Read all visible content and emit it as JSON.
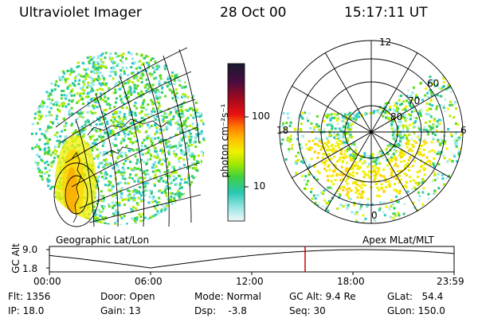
{
  "header": {
    "instrument": "Ultraviolet Imager",
    "date": "28 Oct 00",
    "time": "15:17:11 UT"
  },
  "colorbar": {
    "unit": "photon cm⁻²s⁻¹",
    "ticks": [
      "100",
      "10"
    ],
    "colors": [
      "#202040",
      "#3a1040",
      "#6a0a38",
      "#a00a1e",
      "#dc1414",
      "#ff5a00",
      "#ff9600",
      "#ffc800",
      "#f0f000",
      "#b4ec00",
      "#5adc1e",
      "#28c878",
      "#28c8c8",
      "#8ce6e6",
      "#c8f0f0",
      "#ecf8f8"
    ]
  },
  "left_panel": {
    "label": "Geographic Lat/Lon"
  },
  "right_panel": {
    "label": "Apex MLat/MLT",
    "mlt_labels": {
      "top": "12",
      "left": "18",
      "right": "6",
      "bottom": "0"
    },
    "lat_labels": [
      "60",
      "70",
      "80"
    ]
  },
  "altitude_plot": {
    "axis_label": "GC Alt",
    "y_ticks": [
      "9.0",
      "1.8"
    ],
    "x_ticks": [
      "00:00",
      "06:00",
      "12:00",
      "18:00",
      "23:59"
    ],
    "marker_color": "#cc0000"
  },
  "status": {
    "flt": "Flt: 1356",
    "ip": "IP: 18.0",
    "door": "Door: Open",
    "gain": "Gain: 13",
    "mode": "Mode: Normal",
    "dsp": "Dsp:    -3.8",
    "gcalt": "GC Alt: 9.4 Re",
    "seq": "Seq: 30",
    "glat": "GLat:   54.4",
    "glon": "GLon: 150.0"
  }
}
